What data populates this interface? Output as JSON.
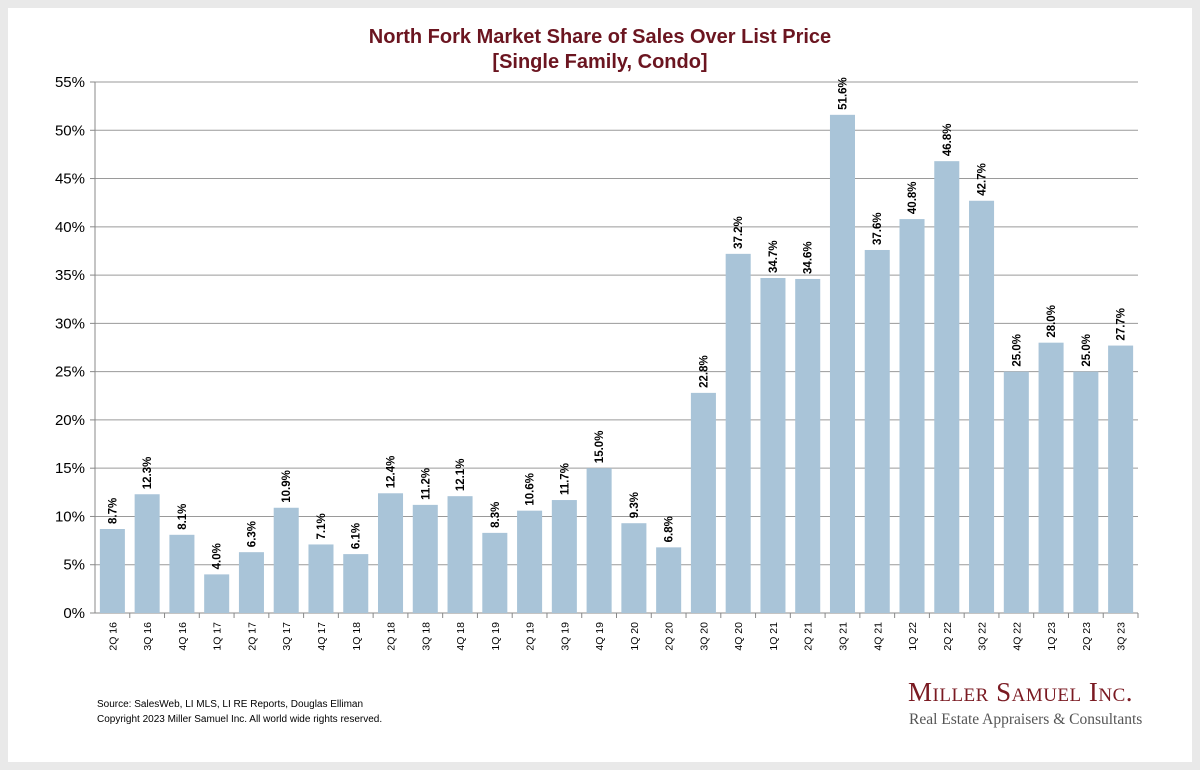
{
  "chart_data": {
    "type": "bar",
    "title": "North Fork Market Share of Sales Over List Price",
    "subtitle": "[Single Family, Condo]",
    "categories": [
      "2Q 16",
      "3Q 16",
      "4Q 16",
      "1Q 17",
      "2Q 17",
      "3Q 17",
      "4Q 17",
      "1Q 18",
      "2Q 18",
      "3Q 18",
      "4Q 18",
      "1Q 19",
      "2Q 19",
      "3Q 19",
      "4Q 19",
      "1Q 20",
      "2Q 20",
      "3Q 20",
      "4Q 20",
      "1Q 21",
      "2Q 21",
      "3Q 21",
      "4Q 21",
      "1Q 22",
      "2Q 22",
      "3Q 22",
      "4Q 22",
      "1Q 23",
      "2Q 23",
      "3Q 23"
    ],
    "values": [
      8.7,
      12.3,
      8.1,
      4.0,
      6.3,
      10.9,
      7.1,
      6.1,
      12.4,
      11.2,
      12.1,
      8.3,
      10.6,
      11.7,
      15.0,
      9.3,
      6.8,
      22.8,
      37.2,
      34.7,
      34.6,
      51.6,
      37.6,
      40.8,
      46.8,
      42.7,
      25.0,
      28.0,
      25.0,
      27.7
    ],
    "data_labels": [
      "8.7%",
      "12.3%",
      "8.1%",
      "4.0%",
      "6.3%",
      "10.9%",
      "7.1%",
      "6.1%",
      "12.4%",
      "11.2%",
      "12.1%",
      "8.3%",
      "10.6%",
      "11.7%",
      "15.0%",
      "9.3%",
      "6.8%",
      "22.8%",
      "37.2%",
      "34.7%",
      "34.6%",
      "51.6%",
      "37.6%",
      "40.8%",
      "46.8%",
      "42.7%",
      "25.0%",
      "28.0%",
      "25.0%",
      "27.7%"
    ],
    "y_ticks": [
      "0%",
      "5%",
      "10%",
      "15%",
      "20%",
      "25%",
      "30%",
      "35%",
      "40%",
      "45%",
      "50%",
      "55%"
    ],
    "ylim": [
      0,
      55
    ],
    "grid": true,
    "bar_color": "#a9c4d8"
  },
  "footer": {
    "source": "Source: SalesWeb, LI MLS, LI RE Reports, Douglas Elliman",
    "copyright": "Copyright 2023 Miller Samuel Inc.  All world wide rights reserved."
  },
  "logo": {
    "name": "Miller Samuel Inc.",
    "tagline": "Real Estate Appraisers & Consultants"
  },
  "colors": {
    "title": "#6b1520",
    "logo": "#7a1a22"
  }
}
